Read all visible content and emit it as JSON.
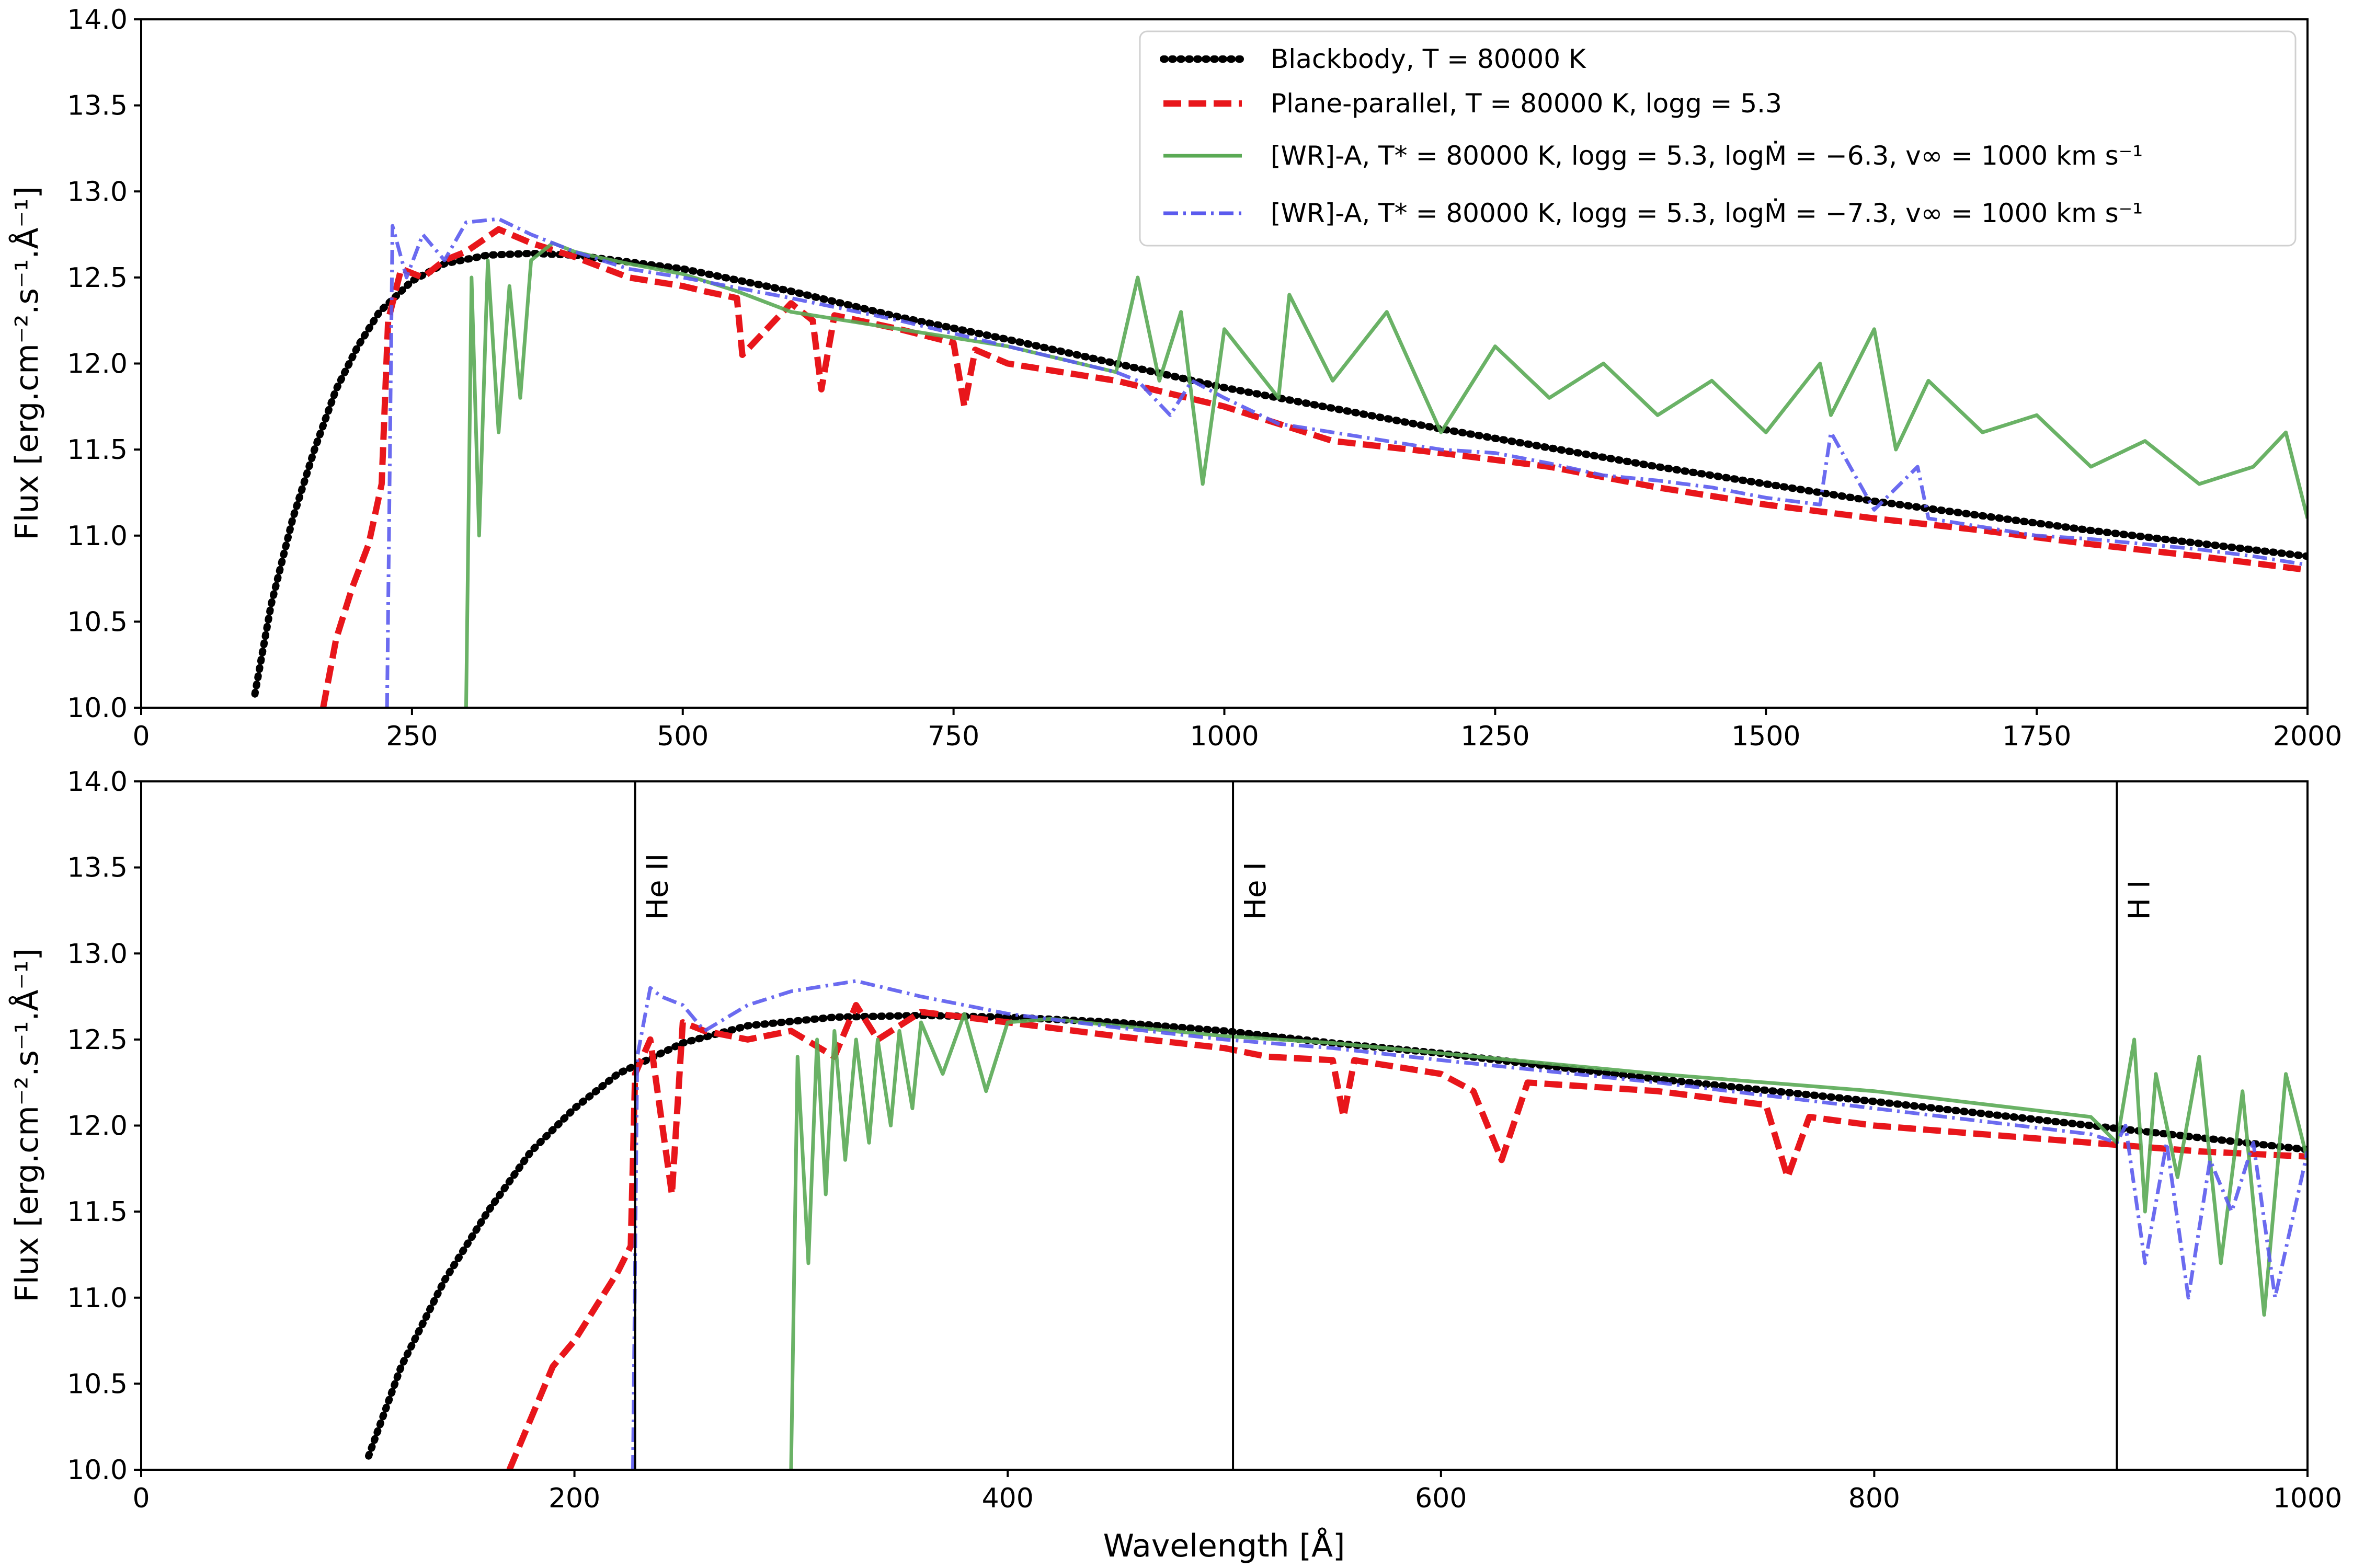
{
  "colors": {
    "blackbody": "#000000",
    "plane_parallel": "#e8161b",
    "wr_high": "#5aaa55",
    "wr_low": "#5b5bee"
  },
  "chart_data": [
    {
      "type": "line",
      "panel": "top",
      "xlabel": "",
      "ylabel": "Flux  [erg.cm⁻².s⁻¹.Å⁻¹]",
      "xlim": [
        0,
        2000
      ],
      "ylim": [
        10.0,
        14.0
      ],
      "xticks": [
        "0",
        "250",
        "500",
        "750",
        "1000",
        "1250",
        "1500",
        "1750",
        "2000"
      ],
      "yticks": [
        "10.0",
        "10.5",
        "11.0",
        "11.5",
        "12.0",
        "12.5",
        "13.0",
        "13.5",
        "14.0"
      ],
      "legend_position": "top-right",
      "legend": [
        "Blackbody, T = 80000 K",
        "Plane-parallel, T = 80000 K, logg = 5.3",
        "[WR]-A, T* = 80000 K, logg = 5.3, logṀ = −6.3, v∞ = 1000 km s⁻¹",
        "[WR]-A, T* = 80000 K, logg = 5.3, logṀ = −7.3, v∞ = 1000 km s⁻¹"
      ],
      "series": [
        {
          "name": "Blackbody, T = 80000 K",
          "style": "dotted",
          "x": [
            105,
            120,
            140,
            160,
            180,
            200,
            220,
            250,
            280,
            320,
            360,
            400,
            500,
            600,
            700,
            800,
            900,
            1000,
            1200,
            1400,
            1600,
            1800,
            2000
          ],
          "y": [
            10.08,
            10.6,
            11.1,
            11.5,
            11.85,
            12.1,
            12.3,
            12.48,
            12.58,
            12.63,
            12.64,
            12.63,
            12.55,
            12.42,
            12.27,
            12.14,
            12.0,
            11.86,
            11.62,
            11.4,
            11.2,
            11.03,
            10.88
          ]
        },
        {
          "name": "Plane-parallel, T = 80000 K, logg = 5.3",
          "style": "dashed",
          "x": [
            168,
            180,
            195,
            210,
            222,
            228,
            240,
            260,
            280,
            300,
            330,
            360,
            400,
            450,
            500,
            520,
            550,
            555,
            600,
            620,
            628,
            640,
            700,
            750,
            760,
            770,
            800,
            850,
            900,
            1000,
            1100,
            1200,
            1300,
            1400,
            1500,
            1600,
            1700,
            1800,
            1900,
            2000
          ],
          "y": [
            10.0,
            10.4,
            10.7,
            10.95,
            11.3,
            12.25,
            12.55,
            12.5,
            12.6,
            12.65,
            12.78,
            12.7,
            12.62,
            12.5,
            12.45,
            12.42,
            12.38,
            12.05,
            12.35,
            12.25,
            11.85,
            12.28,
            12.2,
            12.12,
            11.75,
            12.08,
            12.0,
            11.95,
            11.9,
            11.75,
            11.55,
            11.48,
            11.4,
            11.28,
            11.18,
            11.1,
            11.03,
            10.95,
            10.88,
            10.8
          ]
        },
        {
          "name": "[WR]-A, logṀ = −6.3",
          "style": "solid",
          "x": [
            300,
            305,
            312,
            320,
            330,
            340,
            350,
            360,
            380,
            400,
            420,
            450,
            500,
            550,
            600,
            700,
            800,
            900,
            920,
            940,
            960,
            980,
            1000,
            1050,
            1060,
            1100,
            1150,
            1200,
            1250,
            1300,
            1350,
            1400,
            1450,
            1500,
            1550,
            1560,
            1600,
            1620,
            1650,
            1700,
            1750,
            1800,
            1850,
            1900,
            1950,
            1980,
            2000
          ],
          "y": [
            10.0,
            12.5,
            11.0,
            12.6,
            11.6,
            12.45,
            11.8,
            12.6,
            12.7,
            12.65,
            12.62,
            12.58,
            12.52,
            12.42,
            12.3,
            12.2,
            12.1,
            11.95,
            12.5,
            11.9,
            12.3,
            11.3,
            12.2,
            11.8,
            12.4,
            11.9,
            12.3,
            11.6,
            12.1,
            11.8,
            12.0,
            11.7,
            11.9,
            11.6,
            12.0,
            11.7,
            12.2,
            11.5,
            11.9,
            11.6,
            11.7,
            11.4,
            11.55,
            11.3,
            11.4,
            11.6,
            11.1
          ]
        },
        {
          "name": "[WR]-A, logṀ = −7.3",
          "style": "dashdot",
          "x": [
            227,
            232,
            245,
            260,
            280,
            300,
            330,
            360,
            400,
            450,
            500,
            600,
            700,
            800,
            900,
            920,
            950,
            970,
            1000,
            1050,
            1100,
            1150,
            1200,
            1250,
            1300,
            1350,
            1400,
            1450,
            1500,
            1550,
            1560,
            1600,
            1640,
            1650,
            1700,
            1750,
            1800,
            1850,
            1900,
            1950,
            2000
          ],
          "y": [
            10.0,
            12.8,
            12.5,
            12.75,
            12.6,
            12.82,
            12.84,
            12.75,
            12.65,
            12.55,
            12.5,
            12.38,
            12.25,
            12.1,
            11.95,
            11.9,
            11.7,
            11.9,
            11.8,
            11.65,
            11.6,
            11.55,
            11.5,
            11.48,
            11.42,
            11.35,
            11.32,
            11.28,
            11.22,
            11.18,
            11.6,
            11.15,
            11.4,
            11.1,
            11.05,
            11.0,
            10.98,
            10.95,
            10.92,
            10.88,
            10.83
          ]
        }
      ]
    },
    {
      "type": "line",
      "panel": "bottom",
      "xlabel": "Wavelength [Å]",
      "ylabel": "Flux  [erg.cm⁻².s⁻¹.Å⁻¹]",
      "xlim": [
        0,
        1000
      ],
      "ylim": [
        10.0,
        14.0
      ],
      "xticks": [
        "0",
        "200",
        "400",
        "600",
        "800",
        "1000"
      ],
      "yticks": [
        "10.0",
        "10.5",
        "11.0",
        "11.5",
        "12.0",
        "12.5",
        "13.0",
        "13.5",
        "14.0"
      ],
      "annotations": [
        {
          "label": "He II",
          "x": 228
        },
        {
          "label": "He I",
          "x": 504
        },
        {
          "label": "H I",
          "x": 912
        }
      ],
      "series": [
        {
          "name": "Blackbody, T = 80000 K",
          "style": "dotted",
          "x": [
            105,
            120,
            140,
            160,
            180,
            200,
            220,
            250,
            280,
            320,
            360,
            400,
            450,
            500,
            550,
            600,
            700,
            800,
            900,
            1000
          ],
          "y": [
            10.08,
            10.6,
            11.1,
            11.5,
            11.85,
            12.1,
            12.3,
            12.48,
            12.58,
            12.63,
            12.64,
            12.63,
            12.6,
            12.55,
            12.48,
            12.42,
            12.27,
            12.14,
            12.0,
            11.86
          ]
        },
        {
          "name": "Plane-parallel, T = 80000 K, logg = 5.3",
          "style": "dashed",
          "x": [
            170,
            180,
            190,
            200,
            210,
            220,
            226,
            228,
            235,
            245,
            250,
            260,
            280,
            300,
            320,
            330,
            340,
            360,
            400,
            450,
            500,
            520,
            550,
            555,
            560,
            600,
            615,
            628,
            640,
            700,
            750,
            760,
            770,
            800,
            850,
            900,
            950,
            1000
          ],
          "y": [
            10.0,
            10.3,
            10.6,
            10.75,
            10.95,
            11.15,
            11.3,
            12.3,
            12.5,
            11.6,
            12.6,
            12.55,
            12.5,
            12.55,
            12.4,
            12.7,
            12.5,
            12.66,
            12.6,
            12.52,
            12.45,
            12.4,
            12.38,
            12.05,
            12.38,
            12.3,
            12.2,
            11.8,
            12.25,
            12.2,
            12.12,
            11.7,
            12.05,
            12.0,
            11.95,
            11.9,
            11.85,
            11.82
          ]
        },
        {
          "name": "[WR]-A, logṀ = −6.3",
          "style": "solid",
          "x": [
            300,
            303,
            308,
            312,
            316,
            320,
            325,
            330,
            336,
            340,
            346,
            350,
            356,
            360,
            370,
            380,
            390,
            400,
            420,
            450,
            500,
            550,
            600,
            700,
            800,
            900,
            912,
            920,
            925,
            930,
            940,
            950,
            960,
            970,
            980,
            990,
            1000
          ],
          "y": [
            10.0,
            12.4,
            11.2,
            12.5,
            11.6,
            12.55,
            11.8,
            12.5,
            11.9,
            12.5,
            12.0,
            12.55,
            12.1,
            12.6,
            12.3,
            12.65,
            12.2,
            12.6,
            12.62,
            12.58,
            12.52,
            12.48,
            12.42,
            12.3,
            12.2,
            12.05,
            11.9,
            12.5,
            11.5,
            12.3,
            11.7,
            12.4,
            11.2,
            12.2,
            10.9,
            12.3,
            11.8
          ]
        },
        {
          "name": "[WR]-A, logṀ = −7.3",
          "style": "dashdot",
          "x": [
            227,
            229,
            235,
            240,
            250,
            260,
            280,
            300,
            330,
            360,
            400,
            450,
            500,
            550,
            600,
            700,
            800,
            900,
            912,
            916,
            925,
            935,
            945,
            955,
            965,
            975,
            985,
            1000
          ],
          "y": [
            10.0,
            12.4,
            12.8,
            12.75,
            12.7,
            12.55,
            12.7,
            12.78,
            12.84,
            12.75,
            12.65,
            12.57,
            12.5,
            12.45,
            12.38,
            12.25,
            12.1,
            11.95,
            11.9,
            12.0,
            11.2,
            11.9,
            11.0,
            11.8,
            11.5,
            11.9,
            11.0,
            11.85
          ]
        }
      ]
    }
  ]
}
